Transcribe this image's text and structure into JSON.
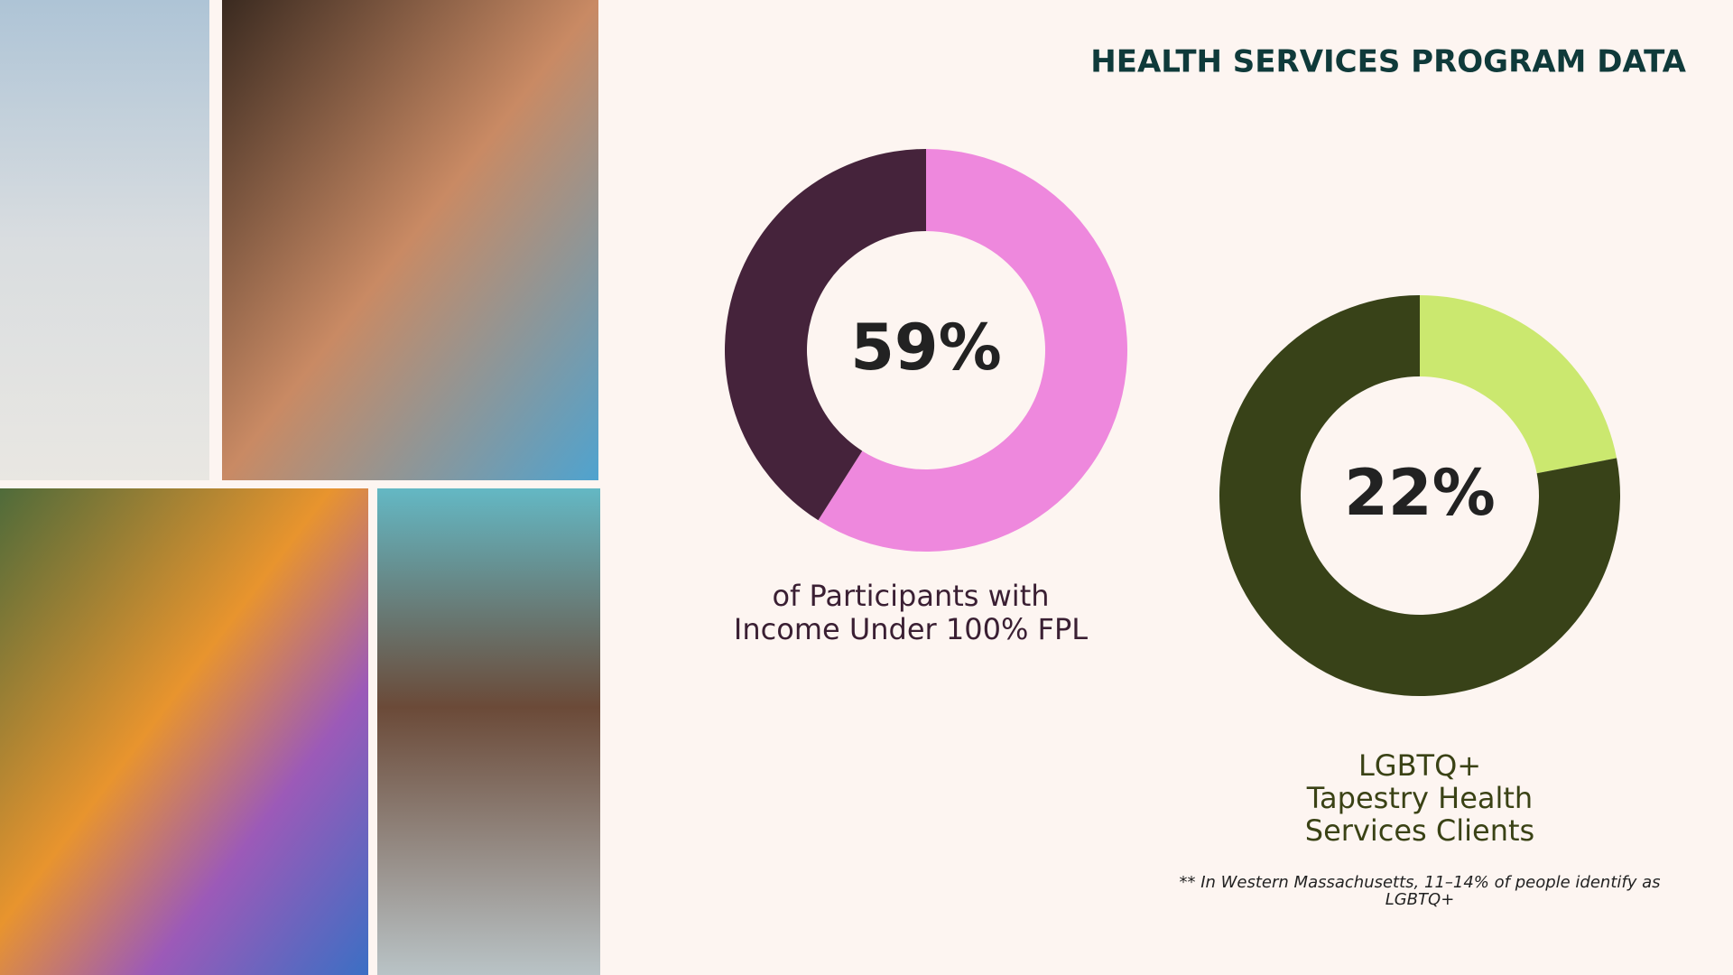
{
  "title": "HEALTH SERVICES PROGRAM DATA",
  "chart_data": [
    {
      "type": "donut",
      "values": [
        59,
        41
      ],
      "value_labels": [
        "59%",
        null
      ],
      "colors": [
        "#ee88dd",
        "#45233b"
      ],
      "caption_lines": [
        "of Participants with",
        "Income Under 100% FPL"
      ]
    },
    {
      "type": "donut",
      "values": [
        22,
        78
      ],
      "value_labels": [
        "22%",
        null
      ],
      "colors": [
        "#cbe86f",
        "#384218"
      ],
      "caption_lines": [
        "LGBTQ+",
        "Tapestry Health",
        "Services Clients"
      ]
    }
  ],
  "footnote": "** In Western Massachusetts, 11–14% of people identify as LGBTQ+"
}
